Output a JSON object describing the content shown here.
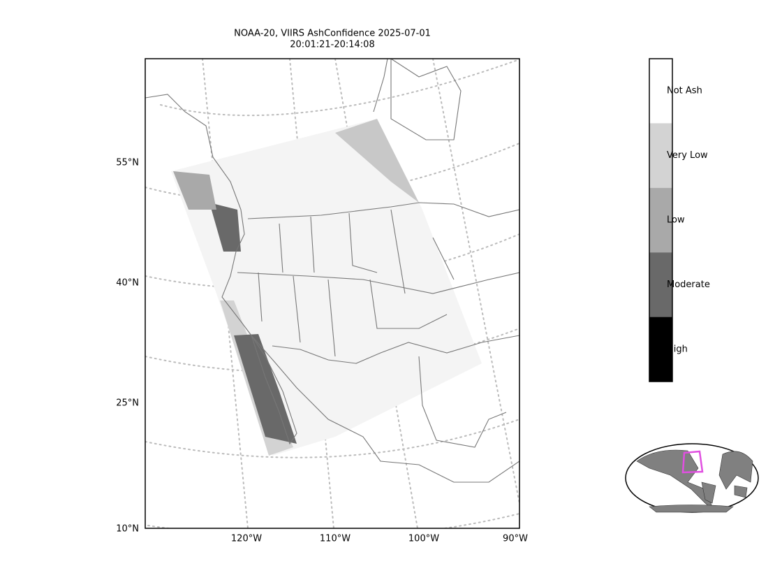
{
  "map": {
    "title_lines": [
      "NOAA-20, VIIRS AshConfidence 2025-07-01",
      "20:01:21-20:14:08"
    ],
    "lat_labels": [
      "55°N",
      "40°N",
      "25°N",
      "10°N"
    ],
    "lon_labels": [
      "120°W",
      "110°W",
      "100°W",
      "90°W"
    ],
    "colorbar": {
      "categories": [
        "Not Ash",
        "Very Low",
        "Low",
        "Moderate",
        "High"
      ],
      "colors": [
        "#ffffff",
        "#d3d3d3",
        "#a9a9a9",
        "#696969",
        "#000000"
      ]
    }
  }
}
